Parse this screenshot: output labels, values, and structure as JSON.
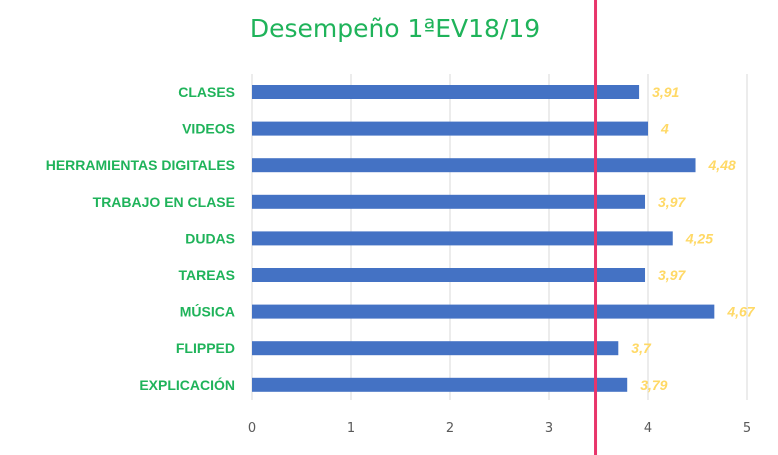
{
  "chart_data": {
    "type": "bar",
    "orientation": "horizontal",
    "title": "Desempeño 1ªEV18/19",
    "categories": [
      "CLASES",
      "VIDEOS",
      "HERRAMIENTAS DIGITALES",
      "TRABAJO EN CLASE",
      "DUDAS",
      "TAREAS",
      "MÚSICA",
      "FLIPPED",
      "EXPLICACIÓN"
    ],
    "values": [
      3.91,
      4,
      4.48,
      3.97,
      4.25,
      3.97,
      4.67,
      3.7,
      3.79
    ],
    "value_labels": [
      "3,91",
      "4",
      "4,48",
      "3,97",
      "4,25",
      "3,97",
      "4,67",
      "3,7",
      "3,79"
    ],
    "xlim": [
      0,
      5
    ],
    "x_ticks": [
      "0",
      "1",
      "2",
      "3",
      "4",
      "5"
    ],
    "grid": true,
    "reference_line": {
      "value": 3.47,
      "color": "#e8356b"
    },
    "colors": {
      "bar": "#4472c4",
      "title": "#1fb35a",
      "category_label": "#1fb35a",
      "data_label": "#ffd966",
      "grid": "#d9d9d9"
    }
  }
}
